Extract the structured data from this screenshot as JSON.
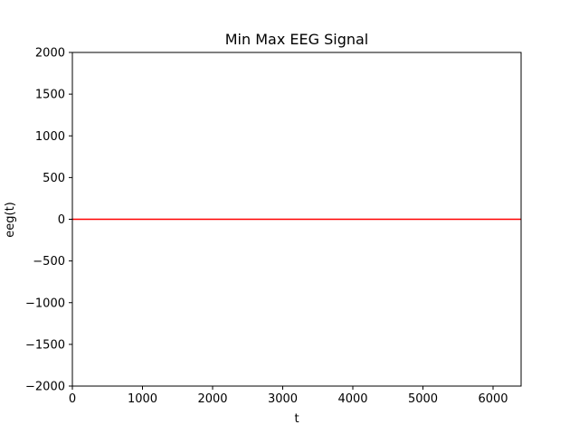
{
  "chart_data": {
    "type": "line",
    "title": "Min Max EEG Signal",
    "xlabel": "t",
    "ylabel": "eeg(t)",
    "xlim": [
      0,
      6400
    ],
    "ylim": [
      -2000,
      2000
    ],
    "x_ticks": [
      0,
      1000,
      2000,
      3000,
      4000,
      5000,
      6000
    ],
    "y_ticks": [
      -2000,
      -1500,
      -1000,
      -500,
      0,
      500,
      1000,
      1500,
      2000
    ],
    "x_tick_labels": [
      "0",
      "1000",
      "2000",
      "3000",
      "4000",
      "5000",
      "6000"
    ],
    "y_tick_labels": [
      "−2000",
      "−1500",
      "−1000",
      "−500",
      "0",
      "500",
      "1000",
      "1500",
      "2000"
    ],
    "grid": false,
    "series": [
      {
        "color": "#ff0000",
        "x": [
          0,
          6400
        ],
        "y": [
          0,
          0
        ]
      }
    ]
  }
}
